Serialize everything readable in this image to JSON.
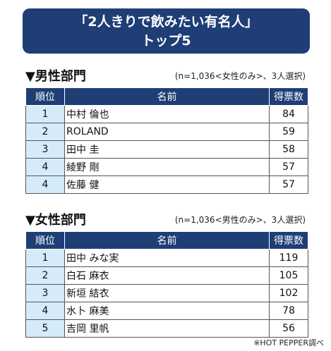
{
  "title": {
    "line1": "「2人きりで飲みたい有名人」",
    "line2": "トップ5"
  },
  "male": {
    "heading": "▼男性部門",
    "note": "(n=1,036<女性のみ>、3人選択)",
    "headers": {
      "rank": "順位",
      "name": "名前",
      "votes": "得票数"
    },
    "rows": [
      {
        "rank": "1",
        "name": "中村 倫也",
        "votes": "84"
      },
      {
        "rank": "2",
        "name": "ROLAND",
        "votes": "59"
      },
      {
        "rank": "3",
        "name": "田中 圭",
        "votes": "58"
      },
      {
        "rank": "4",
        "name": "綾野 剛",
        "votes": "57"
      },
      {
        "rank": "4",
        "name": "佐藤 健",
        "votes": "57"
      }
    ]
  },
  "female": {
    "heading": "▼女性部門",
    "note": "(n=1,036<男性のみ>、3人選択)",
    "headers": {
      "rank": "順位",
      "name": "名前",
      "votes": "得票数"
    },
    "rows": [
      {
        "rank": "1",
        "name": "田中 みな実",
        "votes": "119"
      },
      {
        "rank": "2",
        "name": "白石 麻衣",
        "votes": "105"
      },
      {
        "rank": "3",
        "name": "新垣 結衣",
        "votes": "102"
      },
      {
        "rank": "4",
        "name": "水卜 麻美",
        "votes": "78"
      },
      {
        "rank": "5",
        "name": "吉岡 里帆",
        "votes": "56"
      }
    ]
  },
  "source": "※HOT PEPPER調べ"
}
